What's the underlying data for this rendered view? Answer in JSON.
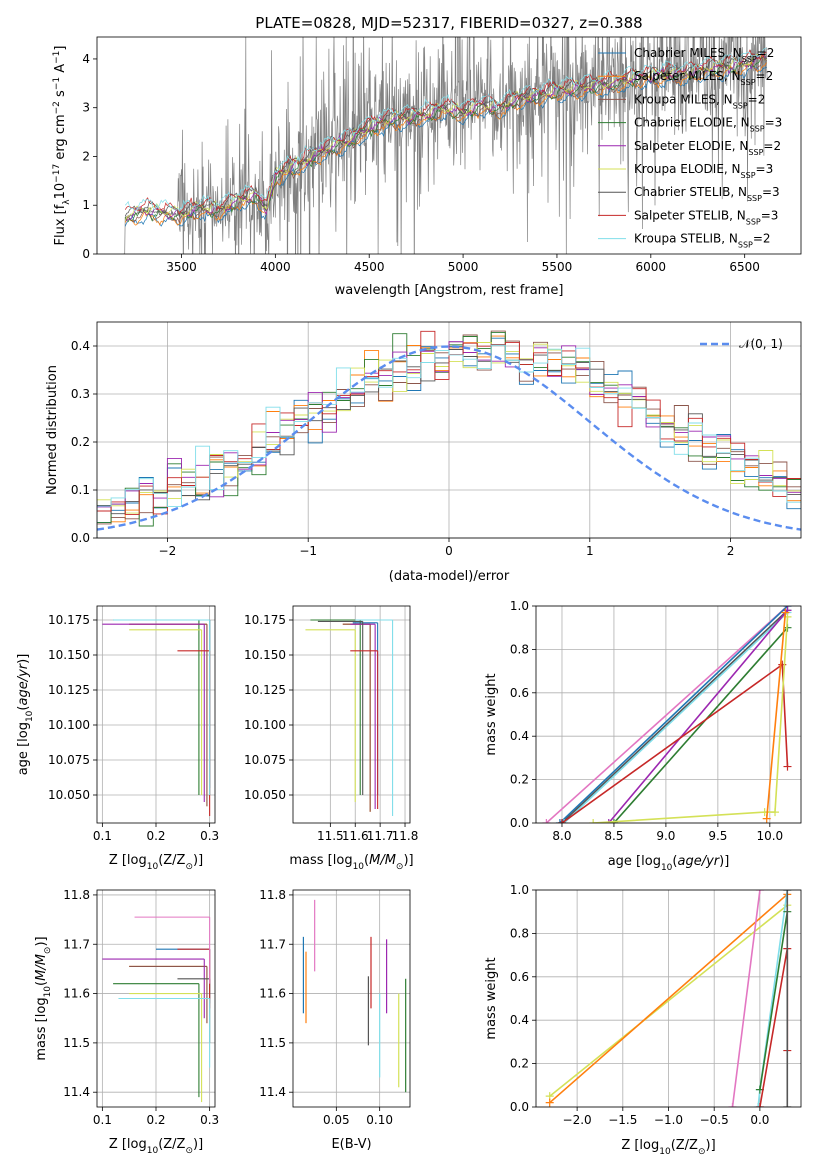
{
  "figure": {
    "title": "PLATE=0828, MJD=52317, FIBERID=0327, z=0.388"
  },
  "colors": {
    "chabrier_miles": "#1f77b4",
    "salpeter_miles": "#ff7f0e",
    "kroupa_miles": "#8c564b",
    "chabrier_elodie": "#2e7d32",
    "salpeter_elodie": "#9c27b0",
    "kroupa_elodie": "#d4e157",
    "chabrier_stelib": "#555555",
    "salpeter_stelib": "#c62828",
    "kroupa_stelib": "#80deea",
    "data": "#808080",
    "normal_curve": "#5b8def"
  },
  "chart_data": [
    {
      "id": "spectrum",
      "type": "line",
      "xlabel": "wavelength [Angstrom, rest frame]",
      "ylabel": "Flux [f$_\\lambda$ 10$^{-17}$ erg cm$^{-2}$ s$^{-1}$ A$^{-1}$]",
      "ylabel_parts": [
        "Flux [f",
        "λ",
        "10",
        "−17",
        " erg cm",
        "−2",
        " s",
        "−1",
        " A",
        "−1",
        "]"
      ],
      "xlim": [
        3050,
        6800
      ],
      "ylim": [
        0,
        4.45
      ],
      "xticks": [
        3500,
        4000,
        4500,
        5000,
        5500,
        6000,
        6500
      ],
      "yticks": [
        0,
        1,
        2,
        3,
        4
      ],
      "legend": [
        {
          "main": "Chabrier MILES, N",
          "sub": "SSP",
          "tail": "=2",
          "color": "chabrier_miles"
        },
        {
          "main": "Salpeter MILES, N",
          "sub": "SSP",
          "tail": "=2",
          "color": "salpeter_miles"
        },
        {
          "main": "Kroupa MILES, N",
          "sub": "SSP",
          "tail": "=2",
          "color": "kroupa_miles"
        },
        {
          "main": "Chabrier ELODIE, N",
          "sub": "SSP",
          "tail": "=3",
          "color": "chabrier_elodie"
        },
        {
          "main": "Salpeter ELODIE, N",
          "sub": "SSP",
          "tail": "=2",
          "color": "salpeter_elodie"
        },
        {
          "main": "Kroupa ELODIE, N",
          "sub": "SSP",
          "tail": "=3",
          "color": "kroupa_elodie"
        },
        {
          "main": "Chabrier STELIB, N",
          "sub": "SSP",
          "tail": "=3",
          "color": "chabrier_stelib"
        },
        {
          "main": "Salpeter STELIB, N",
          "sub": "SSP",
          "tail": "=3",
          "color": "salpeter_stelib"
        },
        {
          "main": "Kroupa STELIB, N",
          "sub": "SSP",
          "tail": "=2",
          "color": "kroupa_stelib"
        }
      ],
      "model_continuum": [
        [
          3200,
          0.75
        ],
        [
          3300,
          0.9
        ],
        [
          3400,
          0.85
        ],
        [
          3500,
          0.8
        ],
        [
          3600,
          0.95
        ],
        [
          3700,
          0.9
        ],
        [
          3800,
          1.1
        ],
        [
          3900,
          1.2
        ],
        [
          3950,
          0.9
        ],
        [
          4000,
          1.6
        ],
        [
          4100,
          1.8
        ],
        [
          4200,
          2.0
        ],
        [
          4300,
          2.2
        ],
        [
          4400,
          2.35
        ],
        [
          4500,
          2.6
        ],
        [
          4600,
          2.75
        ],
        [
          4700,
          2.8
        ],
        [
          4800,
          2.85
        ],
        [
          4900,
          3.0
        ],
        [
          5000,
          2.9
        ],
        [
          5100,
          3.05
        ],
        [
          5200,
          3.0
        ],
        [
          5300,
          3.2
        ],
        [
          5400,
          3.25
        ],
        [
          5500,
          3.35
        ],
        [
          5600,
          3.4
        ],
        [
          5700,
          3.45
        ],
        [
          5800,
          3.5
        ],
        [
          5900,
          3.6
        ],
        [
          6000,
          3.65
        ],
        [
          6100,
          3.7
        ],
        [
          6200,
          3.7
        ],
        [
          6300,
          3.8
        ],
        [
          6400,
          3.85
        ],
        [
          6500,
          3.9
        ],
        [
          6600,
          4.0
        ]
      ],
      "data_range": [
        3190,
        6620
      ]
    },
    {
      "id": "residuals",
      "type": "histogram",
      "xlabel": "(data-model)/error",
      "ylabel": "Normed distribution",
      "xlim": [
        -2.5,
        2.5
      ],
      "ylim": [
        0,
        0.45
      ],
      "xticks": [
        -2,
        -1,
        0,
        1,
        2
      ],
      "yticks": [
        0.0,
        0.1,
        0.2,
        0.3,
        0.4
      ],
      "legend": [
        {
          "label": "𝒩(0, 1)",
          "style": "dashed"
        }
      ],
      "bins": 50,
      "series_order": [
        "chabrier_miles",
        "salpeter_miles",
        "kroupa_miles",
        "chabrier_elodie",
        "salpeter_elodie",
        "kroupa_elodie",
        "chabrier_stelib",
        "salpeter_stelib",
        "kroupa_stelib"
      ]
    },
    {
      "id": "Z_vs_age",
      "type": "errorbar",
      "xlabel": "Z [log$_{10}$(Z/Z$_\\odot$)]",
      "ylabel": "age  [log$_{10}$($age/yr$)]",
      "xlim": [
        0.09,
        0.31
      ],
      "ylim": [
        10.03,
        10.185
      ],
      "xticks": [
        0.1,
        0.2,
        0.3
      ],
      "yticks": [
        10.05,
        10.075,
        10.1,
        10.125,
        10.15,
        10.175
      ],
      "points": [
        {
          "s": "chabrier_miles",
          "x": 0.3,
          "y": 10.175,
          "xlo": 0.12,
          "ylo": 10.055
        },
        {
          "s": "salpeter_miles",
          "x": 0.295,
          "y": 10.172,
          "xlo": 0.15,
          "ylo": 10.042
        },
        {
          "s": "kroupa_miles",
          "x": 0.295,
          "y": 10.172,
          "xlo": 0.15,
          "ylo": 10.042
        },
        {
          "s": "chabrier_elodie",
          "x": 0.28,
          "y": 10.175,
          "xlo": 0.12,
          "ylo": 10.05
        },
        {
          "s": "salpeter_elodie",
          "x": 0.29,
          "y": 10.172,
          "xlo": 0.1,
          "ylo": 10.045
        },
        {
          "s": "kroupa_elodie",
          "x": 0.285,
          "y": 10.168,
          "xlo": 0.15,
          "ylo": 10.05
        },
        {
          "s": "chabrier_stelib",
          "x": 0.3,
          "y": 10.175,
          "xlo": 0.2,
          "ylo": 10.05
        },
        {
          "s": "salpeter_stelib",
          "x": 0.3,
          "y": 10.153,
          "xlo": 0.24,
          "ylo": 10.035
        },
        {
          "s": "kroupa_stelib",
          "x": 0.3,
          "y": 10.175,
          "xlo": 0.12,
          "ylo": 10.05
        }
      ]
    },
    {
      "id": "mass_vs_age",
      "type": "errorbar",
      "xlabel": "mass [log$_{10}$($M/M_\\odot$)]",
      "ylabel": "",
      "xlim": [
        11.35,
        11.82
      ],
      "ylim": [
        10.03,
        10.185
      ],
      "xticks": [
        11.5,
        11.6,
        11.7,
        11.8
      ],
      "yticks": [
        10.05,
        10.075,
        10.1,
        10.125,
        10.15,
        10.175
      ],
      "points": [
        {
          "s": "chabrier_miles",
          "x": 11.69,
          "y": 10.173,
          "xlo": 11.59,
          "ylo": 10.05
        },
        {
          "s": "salpeter_miles",
          "x": 11.66,
          "y": 10.172,
          "xlo": 11.55,
          "ylo": 10.038
        },
        {
          "s": "kroupa_miles",
          "x": 11.66,
          "y": 10.172,
          "xlo": 11.55,
          "ylo": 10.038
        },
        {
          "s": "chabrier_elodie",
          "x": 11.62,
          "y": 10.175,
          "xlo": 11.42,
          "ylo": 10.05
        },
        {
          "s": "salpeter_elodie",
          "x": 11.68,
          "y": 10.172,
          "xlo": 11.58,
          "ylo": 10.04
        },
        {
          "s": "kroupa_elodie",
          "x": 11.6,
          "y": 10.168,
          "xlo": 11.4,
          "ylo": 10.045
        },
        {
          "s": "chabrier_stelib",
          "x": 11.63,
          "y": 10.174,
          "xlo": 11.45,
          "ylo": 10.05
        },
        {
          "s": "salpeter_stelib",
          "x": 11.69,
          "y": 10.153,
          "xlo": 11.58,
          "ylo": 10.04
        },
        {
          "s": "kroupa_stelib",
          "x": 11.75,
          "y": 10.175,
          "xlo": 11.6,
          "ylo": 10.035
        }
      ]
    },
    {
      "id": "Z_vs_mass",
      "type": "errorbar",
      "xlabel": "Z [log$_{10}$(Z/Z$_\\odot$)]",
      "ylabel": "mass [log$_{10}$($M/M_\\odot$)]",
      "xlim": [
        0.09,
        0.31
      ],
      "ylim": [
        11.37,
        11.81
      ],
      "xticks": [
        0.1,
        0.2,
        0.3
      ],
      "yticks": [
        11.4,
        11.5,
        11.6,
        11.7,
        11.8
      ],
      "points": [
        {
          "s": "chabrier_miles",
          "x": 0.3,
          "y": 11.69,
          "xlo": 0.2,
          "ylo": 11.58
        },
        {
          "s": "salpeter_miles",
          "x": 0.295,
          "y": 11.655,
          "xlo": 0.15,
          "ylo": 11.54
        },
        {
          "s": "kroupa_miles",
          "x": 0.295,
          "y": 11.655,
          "xlo": 0.15,
          "ylo": 11.54
        },
        {
          "s": "chabrier_elodie",
          "x": 0.28,
          "y": 11.62,
          "xlo": 0.12,
          "ylo": 11.39
        },
        {
          "s": "salpeter_elodie",
          "x": 0.29,
          "y": 11.67,
          "xlo": 0.1,
          "ylo": 11.55
        },
        {
          "s": "kroupa_elodie",
          "x": 0.285,
          "y": 11.6,
          "xlo": 0.15,
          "ylo": 11.38
        },
        {
          "s": "chabrier_stelib",
          "x": 0.3,
          "y": 11.63,
          "xlo": 0.24,
          "ylo": 11.5
        },
        {
          "s": "salpeter_stelib",
          "x": 0.3,
          "y": 11.69,
          "xlo": 0.24,
          "ylo": 11.57
        },
        {
          "s": "kroupa_stelib",
          "x": 0.3,
          "y": 11.59,
          "xlo": 0.13,
          "ylo": 11.45
        },
        {
          "s": "extra_pink",
          "x": 0.3,
          "y": 11.755,
          "xlo": 0.16,
          "ylo": 11.62
        }
      ]
    },
    {
      "id": "EBV_vs_mass",
      "type": "errorbar",
      "xlabel": "E(B-V)",
      "ylabel": "",
      "xlim": [
        0.0,
        0.135
      ],
      "ylim": [
        11.37,
        11.81
      ],
      "xticks": [
        0.05,
        0.1
      ],
      "yticks": [
        11.4,
        11.5,
        11.6,
        11.7,
        11.8
      ],
      "vsegments": [
        {
          "s": "chabrier_miles",
          "x": 0.012,
          "y0": 11.56,
          "y1": 11.715
        },
        {
          "s": "salpeter_miles",
          "x": 0.015,
          "y0": 11.54,
          "y1": 11.685
        },
        {
          "s": "kroupa_stelib_pink",
          "x": 0.025,
          "y0": 11.645,
          "y1": 11.79
        },
        {
          "s": "chabrier_stelib",
          "x": 0.087,
          "y0": 11.495,
          "y1": 11.635
        },
        {
          "s": "salpeter_stelib",
          "x": 0.09,
          "y0": 11.57,
          "y1": 11.715
        },
        {
          "s": "salpeter_elodie",
          "x": 0.108,
          "y0": 11.56,
          "y1": 11.71
        },
        {
          "s": "kroupa_stelib",
          "x": 0.1,
          "y0": 11.43,
          "y1": 11.6
        },
        {
          "s": "kroupa_elodie",
          "x": 0.122,
          "y0": 11.41,
          "y1": 11.6
        },
        {
          "s": "chabrier_elodie",
          "x": 0.13,
          "y0": 11.4,
          "y1": 11.63
        }
      ]
    },
    {
      "id": "age_vs_weight",
      "type": "line",
      "xlabel": "age  [log$_{10}$($age/yr$)]",
      "ylabel": "mass weight",
      "xlim": [
        7.75,
        10.3
      ],
      "ylim": [
        0,
        1.0
      ],
      "xticks": [
        8.0,
        8.5,
        9.0,
        9.5,
        10.0
      ],
      "yticks": [
        0.0,
        0.2,
        0.4,
        0.6,
        0.8,
        1.0
      ],
      "lines": [
        {
          "s": "pink",
          "pts": [
            [
              7.85,
              0.0
            ],
            [
              10.17,
              1.0
            ]
          ]
        },
        {
          "s": "chabrier_miles",
          "pts": [
            [
              7.98,
              0.0
            ],
            [
              10.17,
              1.0
            ]
          ]
        },
        {
          "s": "chabrier_stelib",
          "pts": [
            [
              8.0,
              0.0
            ],
            [
              10.17,
              0.98
            ]
          ]
        },
        {
          "s": "kroupa_stelib",
          "pts": [
            [
              8.02,
              0.0
            ],
            [
              10.17,
              0.97
            ]
          ]
        },
        {
          "s": "salpeter_elodie",
          "pts": [
            [
              8.45,
              0.0
            ],
            [
              10.17,
              0.98
            ]
          ]
        },
        {
          "s": "chabrier_elodie",
          "pts": [
            [
              8.5,
              0.0
            ],
            [
              10.17,
              0.9
            ]
          ]
        },
        {
          "s": "salpeter_stelib",
          "pts": [
            [
              8.0,
              0.0
            ],
            [
              10.12,
              0.73
            ],
            [
              10.17,
              0.26
            ]
          ]
        },
        {
          "s": "kroupa_elodie",
          "pts": [
            [
              8.3,
              0.0
            ],
            [
              9.95,
              0.05
            ],
            [
              10.05,
              0.05
            ],
            [
              10.17,
              0.95
            ]
          ]
        },
        {
          "s": "salpeter_miles",
          "pts": [
            [
              9.97,
              0.02
            ],
            [
              10.15,
              0.97
            ]
          ]
        }
      ]
    },
    {
      "id": "Z_vs_weight",
      "type": "line",
      "xlabel": "Z [log$_{10}$(Z/Z$_\\odot$)]",
      "ylabel": "mass weight",
      "xlim": [
        -2.45,
        0.45
      ],
      "ylim": [
        0,
        1.0
      ],
      "xticks": [
        -2.0,
        -1.5,
        -1.0,
        -0.5,
        0.0
      ],
      "yticks": [
        0.0,
        0.2,
        0.4,
        0.6,
        0.8,
        1.0
      ],
      "lines": [
        {
          "s": "kroupa_elodie",
          "pts": [
            [
              -2.3,
              0.05
            ],
            [
              0.3,
              0.93
            ]
          ]
        },
        {
          "s": "salpeter_miles",
          "pts": [
            [
              -2.3,
              0.02
            ],
            [
              0.3,
              0.98
            ]
          ]
        },
        {
          "s": "pink",
          "pts": [
            [
              -0.3,
              0.0
            ],
            [
              0.0,
              1.0
            ]
          ]
        },
        {
          "s": "kroupa_stelib",
          "pts": [
            [
              -0.02,
              0.0
            ],
            [
              0.0,
              0.08
            ],
            [
              0.3,
              1.0
            ]
          ]
        },
        {
          "s": "chabrier_elodie",
          "pts": [
            [
              0.0,
              0.08
            ],
            [
              0.3,
              0.9
            ]
          ]
        },
        {
          "s": "salpeter_stelib",
          "pts": [
            [
              0.3,
              0.26
            ],
            [
              0.3,
              0.73
            ],
            [
              0.0,
              0.0
            ]
          ]
        },
        {
          "s": "chabrier_stelib",
          "pts": [
            [
              0.3,
              0.0
            ],
            [
              0.3,
              1.0
            ]
          ]
        }
      ]
    }
  ]
}
